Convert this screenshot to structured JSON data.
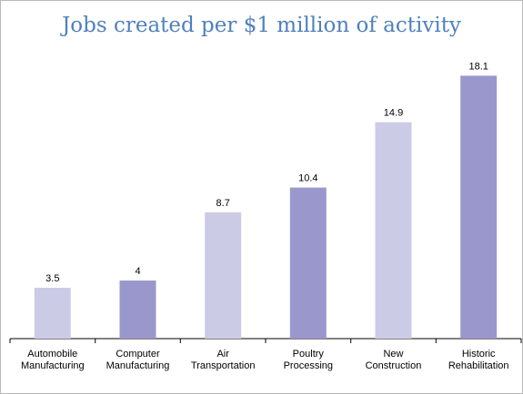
{
  "chart_data": {
    "type": "bar",
    "title": "Jobs created per $1 million of activity",
    "categories": [
      [
        "Automobile",
        "Manufacturing"
      ],
      [
        "Computer",
        "Manufacturing"
      ],
      [
        "Air",
        "Transportation"
      ],
      [
        "Poultry",
        "Processing"
      ],
      [
        "New",
        "Construction"
      ],
      [
        "Historic",
        "Rehabilitation"
      ]
    ],
    "values": [
      3.5,
      4,
      8.7,
      10.4,
      14.9,
      18.1
    ],
    "value_labels": [
      "3.5",
      "4",
      "8.7",
      "10.4",
      "14.9",
      "18.1"
    ],
    "ylim": [
      0,
      20
    ],
    "grid": false,
    "legend": "none",
    "colors": [
      "#cccbe6",
      "#9a97cc",
      "#cccbe6",
      "#9a97cc",
      "#cccbe6",
      "#9a97cc"
    ],
    "xlabel": "",
    "ylabel": ""
  }
}
